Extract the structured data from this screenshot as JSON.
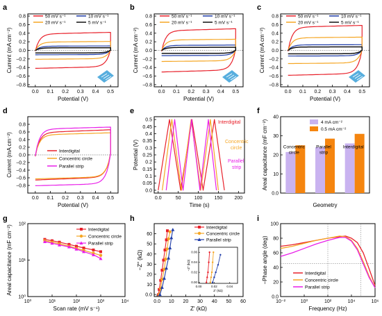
{
  "figure": {
    "panels": [
      {
        "letter": "a"
      },
      {
        "letter": "b"
      },
      {
        "letter": "c"
      },
      {
        "letter": "d"
      },
      {
        "letter": "e"
      },
      {
        "letter": "f"
      },
      {
        "letter": "g"
      },
      {
        "letter": "h"
      },
      {
        "letter": "i"
      }
    ]
  },
  "colors": {
    "red": "#e8202a",
    "orange": "#f5a623",
    "blue": "#1f3ca8",
    "black": "#111111",
    "magenta": "#e81ee8",
    "lavender": "#c9b3f0",
    "bar_orange": "#f5850f",
    "device": "#3aa0d8"
  },
  "chart_data": [
    {
      "panel": "a",
      "type": "line",
      "xlabel": "Potential (V)",
      "ylabel": "Current (mA cm⁻²)",
      "xlim": [
        -0.05,
        0.55
      ],
      "ylim": [
        -0.85,
        0.85
      ],
      "xticks": [
        0.0,
        0.1,
        0.2,
        0.3,
        0.4,
        0.5
      ],
      "yticks": [
        -0.8,
        -0.6,
        -0.4,
        -0.2,
        0.0,
        0.2,
        0.4,
        0.6,
        0.8
      ],
      "legend": "top",
      "series": [
        {
          "name": "50 mV s⁻¹",
          "color": "red",
          "loop": {
            "top": 0.4,
            "bottom": -0.4,
            "slope": 0.28,
            "amp": 0.28
          }
        },
        {
          "name": "10 mV s⁻¹",
          "color": "blue",
          "loop": {
            "top": 0.1,
            "bottom": -0.1,
            "slope": 0.12,
            "amp": 0.1
          }
        },
        {
          "name": "20 mV s⁻¹",
          "color": "orange",
          "loop": {
            "top": 0.2,
            "bottom": -0.2,
            "slope": 0.2,
            "amp": 0.16
          }
        },
        {
          "name": "5 mV s⁻¹",
          "color": "black",
          "loop": {
            "top": 0.06,
            "bottom": -0.06,
            "slope": 0.1,
            "amp": 0.07
          }
        }
      ]
    },
    {
      "panel": "b",
      "type": "line",
      "xlabel": "Potential (V)",
      "ylabel": "Current (mA cm⁻²)",
      "xlim": [
        -0.05,
        0.55
      ],
      "ylim": [
        -0.85,
        0.85
      ],
      "xticks": [
        0.0,
        0.1,
        0.2,
        0.3,
        0.4,
        0.5
      ],
      "yticks": [
        -0.8,
        -0.6,
        -0.4,
        -0.2,
        0.0,
        0.2,
        0.4,
        0.6,
        0.8
      ],
      "legend": "top",
      "series": [
        {
          "name": "50 mV s⁻¹",
          "color": "red",
          "loop": {
            "top": 0.48,
            "bottom": -0.48,
            "slope": 0.3,
            "amp": 0.32
          }
        },
        {
          "name": "10 mV s⁻¹",
          "color": "blue",
          "loop": {
            "top": 0.12,
            "bottom": -0.12,
            "slope": 0.1,
            "amp": 0.12
          }
        },
        {
          "name": "20 mV s⁻¹",
          "color": "orange",
          "loop": {
            "top": 0.25,
            "bottom": -0.25,
            "slope": 0.18,
            "amp": 0.2
          }
        },
        {
          "name": "5 mV s⁻¹",
          "color": "black",
          "loop": {
            "top": 0.07,
            "bottom": -0.07,
            "slope": 0.08,
            "amp": 0.08
          }
        }
      ]
    },
    {
      "panel": "c",
      "type": "line",
      "xlabel": "Potential (V)",
      "ylabel": "Current (mA cm⁻²)",
      "xlim": [
        -0.05,
        0.55
      ],
      "ylim": [
        -0.85,
        0.85
      ],
      "xticks": [
        0.0,
        0.1,
        0.2,
        0.3,
        0.4,
        0.5
      ],
      "yticks": [
        -0.8,
        -0.6,
        -0.4,
        -0.2,
        0.0,
        0.2,
        0.4,
        0.6,
        0.8
      ],
      "legend": "top",
      "series": [
        {
          "name": "50 mV s⁻¹",
          "color": "red",
          "loop": {
            "top": 0.56,
            "bottom": -0.56,
            "slope": 0.22,
            "amp": 0.4
          }
        },
        {
          "name": "10 mV s⁻¹",
          "color": "blue",
          "loop": {
            "top": 0.13,
            "bottom": -0.13,
            "slope": 0.08,
            "amp": 0.13
          }
        },
        {
          "name": "20 mV s⁻¹",
          "color": "orange",
          "loop": {
            "top": 0.3,
            "bottom": -0.3,
            "slope": 0.14,
            "amp": 0.24
          }
        },
        {
          "name": "5 mV s⁻¹",
          "color": "black",
          "loop": {
            "top": 0.08,
            "bottom": -0.08,
            "slope": 0.06,
            "amp": 0.08
          }
        }
      ]
    },
    {
      "panel": "d",
      "type": "line",
      "xlabel": "Potential (V)",
      "ylabel": "Current (mA cm⁻²)",
      "xlim": [
        -0.05,
        0.55
      ],
      "ylim": [
        -1.0,
        1.0
      ],
      "xticks": [
        0.0,
        0.1,
        0.2,
        0.3,
        0.4,
        0.5
      ],
      "yticks": [
        -0.8,
        -0.6,
        -0.4,
        -0.2,
        0.0,
        0.2,
        0.4,
        0.6,
        0.8
      ],
      "legend": "center",
      "series": [
        {
          "name": "Interdigital",
          "color": "red",
          "loop": {
            "top": 0.62,
            "bottom": -0.62,
            "slope": 0.3,
            "amp": 0.5
          }
        },
        {
          "name": "Concentric circle",
          "color": "orange",
          "loop": {
            "top": 0.55,
            "bottom": -0.6,
            "slope": 0.25,
            "amp": 0.45
          }
        },
        {
          "name": "Parallel strip",
          "color": "magenta",
          "loop": {
            "top": 0.7,
            "bottom": -0.78,
            "slope": 0.2,
            "amp": 0.55
          }
        }
      ]
    },
    {
      "panel": "e",
      "type": "line",
      "xlabel": "Time (s)",
      "ylabel": "Potential (V)",
      "xlim": [
        -10,
        215
      ],
      "ylim": [
        -0.02,
        0.52
      ],
      "xticks": [
        0,
        50,
        100,
        150,
        200
      ],
      "yticks": [
        0.0,
        0.05,
        0.1,
        0.15,
        0.2,
        0.25,
        0.3,
        0.35,
        0.4,
        0.45,
        0.5
      ],
      "annotations": [
        "Interdigital",
        "Concentric circle",
        "Parallel strip"
      ],
      "series": [
        {
          "name": "Interdigital",
          "color": "red",
          "x": [
            0,
            28,
            56,
            84,
            112,
            140,
            165
          ],
          "y": [
            0,
            0.5,
            0,
            0.5,
            0,
            0.5,
            0
          ]
        },
        {
          "name": "Concentric circle",
          "color": "orange",
          "x": [
            10,
            34,
            58,
            82,
            106,
            130,
            150
          ],
          "y": [
            0,
            0.5,
            0,
            0.5,
            0,
            0.5,
            0
          ]
        },
        {
          "name": "Parallel strip",
          "color": "magenta",
          "x": [
            20,
            41,
            62,
            83,
            104,
            125,
            145
          ],
          "y": [
            0,
            0.5,
            0,
            0.5,
            0,
            0.5,
            0
          ]
        }
      ]
    },
    {
      "panel": "f",
      "type": "bar",
      "xlabel": "Geometry",
      "ylabel": "Areal capacitance (mF cm⁻²)",
      "ylim": [
        0,
        40
      ],
      "yticks": [
        0,
        10,
        20,
        30,
        40
      ],
      "categories": [
        "Concentric circle",
        "Parallel strip",
        "Interdigital"
      ],
      "series": [
        {
          "name": "4 mA cm⁻²",
          "color": "lavender",
          "values": [
            21.5,
            24.0,
            26.0
          ]
        },
        {
          "name": "0.5 mA cm⁻²",
          "color": "bar_orange",
          "values": [
            25.0,
            28.5,
            31.0
          ]
        }
      ]
    },
    {
      "panel": "g",
      "type": "line",
      "xlabel": "Scan rate (mV s⁻¹)",
      "ylabel": "Areal capacitance (mF cm⁻²)",
      "xscale": "log",
      "yscale": "log",
      "xlim": [
        1,
        10000
      ],
      "ylim": [
        1,
        100
      ],
      "xticks": [
        "10⁰",
        "10¹",
        "10²",
        "10³",
        "10⁴"
      ],
      "yticks": [
        "10⁰",
        "10¹",
        "10²"
      ],
      "legend": "top-right",
      "series": [
        {
          "name": "Interdigital",
          "color": "red",
          "x": [
            5,
            10,
            20,
            50,
            100,
            200,
            500,
            1000
          ],
          "y": [
            37,
            34,
            31,
            27,
            24,
            21.5,
            19,
            17
          ]
        },
        {
          "name": "Concentric circle",
          "color": "orange",
          "x": [
            5,
            10,
            20,
            50,
            100,
            200,
            500,
            1000
          ],
          "y": [
            34,
            31,
            28,
            24,
            21,
            18.5,
            15.5,
            13.5
          ]
        },
        {
          "name": "Parallel strip",
          "color": "magenta",
          "x": [
            5,
            10,
            20,
            50,
            100,
            200,
            500,
            1000
          ],
          "y": [
            32,
            29,
            26,
            23,
            20,
            17,
            14,
            11
          ]
        }
      ]
    },
    {
      "panel": "h",
      "type": "scatter",
      "xlabel": "Z′ (kΩ)",
      "ylabel": "−Z″ (kΩ)",
      "xlim": [
        -2,
        60
      ],
      "ylim": [
        -2,
        70
      ],
      "xticks": [
        0,
        10,
        20,
        30,
        40,
        50,
        60
      ],
      "yticks": [
        0,
        10,
        20,
        30,
        40,
        50,
        60
      ],
      "legend": "top-right",
      "series": [
        {
          "name": "Interdigital",
          "color": "red",
          "x": [
            1,
            1.5,
            2.5,
            3.5,
            4.5,
            5.5,
            6.5,
            7.2
          ],
          "y": [
            0,
            5,
            14,
            24,
            34,
            44,
            54,
            63
          ]
        },
        {
          "name": "Concentric circle",
          "color": "orange",
          "x": [
            1.5,
            2.5,
            3.5,
            5,
            6,
            7,
            8,
            9
          ],
          "y": [
            0,
            6,
            15,
            25,
            35,
            45,
            55,
            62
          ]
        },
        {
          "name": "Parallel strip",
          "color": "blue",
          "x": [
            2,
            3.5,
            5,
            6.5,
            8,
            9,
            10,
            11
          ],
          "y": [
            0,
            7,
            16,
            26,
            36,
            46,
            56,
            64
          ]
        }
      ],
      "inset": {
        "xlabel": "Z′ (kΩ)",
        "ylabel": "−Z″ (kΩ)",
        "xlim": [
          0,
          0.05
        ],
        "ylim": [
          -0.002,
          0.07
        ],
        "xticks": [
          0.0,
          0.02,
          0.04
        ],
        "yticks": [
          0.0,
          0.02,
          0.04,
          0.06
        ],
        "series": [
          {
            "name": "Interdigital",
            "color": "red",
            "x": [
              0.01,
              0.011,
              0.012,
              0.013,
              0.014
            ],
            "y": [
              0.0,
              0.01,
              0.02,
              0.04,
              0.06
            ]
          },
          {
            "name": "Concentric circle",
            "color": "orange",
            "x": [
              0.015,
              0.016,
              0.017,
              0.018,
              0.019
            ],
            "y": [
              0.0,
              0.01,
              0.02,
              0.04,
              0.06
            ]
          },
          {
            "name": "Parallel strip",
            "color": "blue",
            "x": [
              0.018,
              0.02,
              0.022,
              0.025,
              0.028
            ],
            "y": [
              0.0,
              0.01,
              0.02,
              0.035,
              0.055
            ]
          }
        ]
      }
    },
    {
      "panel": "i",
      "type": "line",
      "xlabel": "Frequency (Hz)",
      "ylabel": "−Phase angle (deg)",
      "xscale": "log",
      "xlim": [
        -2,
        6
      ],
      "ylim": [
        0,
        100
      ],
      "xticks": [
        "10⁻²",
        "10⁰",
        "10²",
        "10⁴",
        "10⁶"
      ],
      "yticks": [
        0,
        20,
        40,
        60,
        80,
        100
      ],
      "legend": "bottom-center",
      "series": [
        {
          "name": "Interdigital",
          "color": "red",
          "logx": [
            -2,
            -1,
            0,
            1,
            2,
            3,
            3.5,
            4,
            4.5,
            5,
            5.5,
            6
          ],
          "y": [
            69,
            71,
            74,
            77,
            80,
            82,
            83,
            80,
            74,
            60,
            38,
            15
          ]
        },
        {
          "name": "Concentric circle",
          "color": "orange",
          "logx": [
            -2,
            -1,
            0,
            1,
            2,
            3,
            3.5,
            4,
            4.5,
            5,
            5.5,
            6
          ],
          "y": [
            66,
            69,
            73,
            77,
            80,
            83,
            82,
            77,
            66,
            48,
            28,
            12
          ]
        },
        {
          "name": "Parallel strip",
          "color": "magenta",
          "logx": [
            -2,
            -1,
            0,
            1,
            2,
            3,
            3.5,
            4,
            4.5,
            5,
            5.5,
            6
          ],
          "y": [
            55,
            60,
            66,
            72,
            77,
            81,
            81,
            76,
            64,
            45,
            26,
            12
          ]
        }
      ]
    }
  ]
}
